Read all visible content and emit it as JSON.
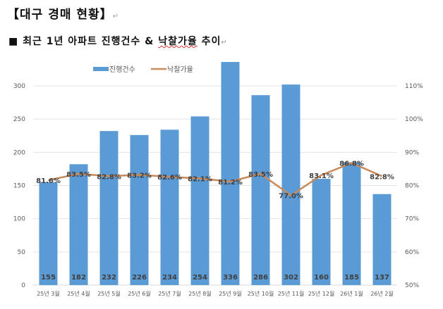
{
  "document": {
    "heading": "【대구 경매 현황】",
    "subheading_prefix": "■ 최근 1년 아파트 진행건수 & ",
    "subheading_underlined": "낙찰가율",
    "subheading_suffix": " 추이"
  },
  "chart_data": {
    "type": "bar+line",
    "categories": [
      "25년 3월",
      "25년 4월",
      "25년 5월",
      "25년 6월",
      "25년 7월",
      "25년 8월",
      "25년 9월",
      "25년 10월",
      "25년 11월",
      "25년 12월",
      "26년 1월",
      "26년 2월"
    ],
    "series": [
      {
        "name": "진행건수",
        "type": "bar",
        "axis": "left",
        "color": "#5b9bd5",
        "values": [
          155,
          182,
          232,
          226,
          234,
          254,
          336,
          286,
          302,
          160,
          185,
          137
        ]
      },
      {
        "name": "낙찰가율",
        "type": "line",
        "axis": "right",
        "color": "#c98a5a",
        "values": [
          81.6,
          83.5,
          82.8,
          83.2,
          82.6,
          82.1,
          81.2,
          83.5,
          77.0,
          83.1,
          86.8,
          82.8
        ]
      }
    ],
    "left_axis": {
      "ylim": [
        0,
        350
      ],
      "ticks": [
        0,
        50,
        100,
        150,
        200,
        250,
        300
      ]
    },
    "right_axis": {
      "ylim": [
        50,
        110
      ],
      "ticks": [
        "50%",
        "60%",
        "70%",
        "80%",
        "90%",
        "100%",
        "110%"
      ]
    },
    "legend": "top-center",
    "grid": true
  }
}
